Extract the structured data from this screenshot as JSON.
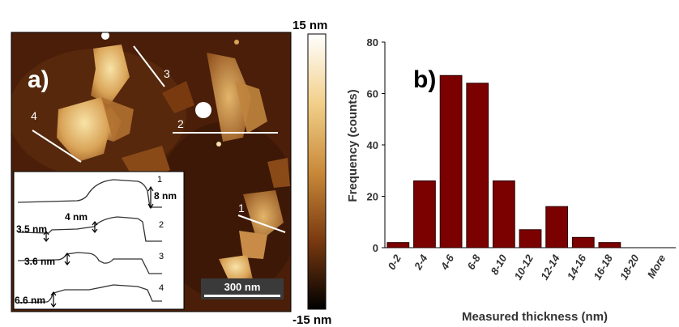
{
  "afm": {
    "panel_label": "a)",
    "colorbar": {
      "max_label": "15 nm",
      "min_label": "-15 nm",
      "colors": [
        "#ffffff",
        "#f2d08a",
        "#c98a3a",
        "#7a3a10",
        "#000000"
      ]
    },
    "scalebar_label": "300 nm",
    "line_labels": [
      "1",
      "2",
      "3",
      "4"
    ],
    "inset": {
      "profile_numbers": [
        "1",
        "2",
        "3",
        "4"
      ],
      "height_labels": [
        "8 nm",
        "4 nm",
        "3.5 nm",
        "3.6 nm",
        "6.6 nm"
      ]
    }
  },
  "chart_data": {
    "type": "bar",
    "panel_label": "b)",
    "categories": [
      "0-2",
      "2-4",
      "4-6",
      "6-8",
      "8-10",
      "10-12",
      "12-14",
      "14-16",
      "16-18",
      "18-20",
      "More"
    ],
    "values": [
      2,
      26,
      67,
      64,
      26,
      7,
      16,
      4,
      2,
      0,
      0
    ],
    "xlabel": "Measured thickness (nm)",
    "ylabel": "Frequency (counts)",
    "ylim": [
      0,
      80
    ],
    "yticks": [
      "0",
      "20",
      "40",
      "60",
      "80"
    ],
    "grid": false,
    "bar_color": "#7b0000"
  }
}
